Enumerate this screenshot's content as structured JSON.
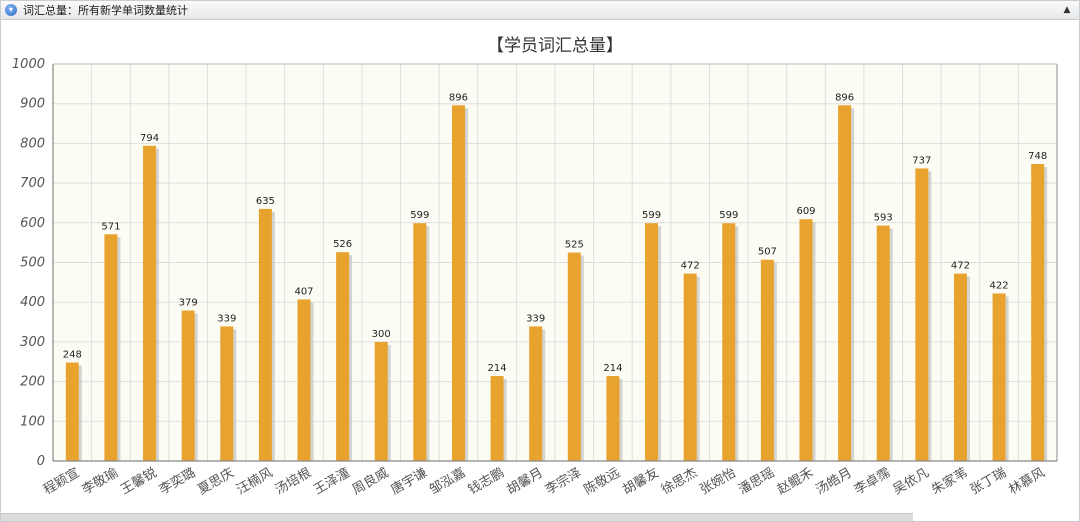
{
  "window": {
    "title": "词汇总量：所有新学单词数量统计",
    "collapse_icon": "chevron-up-icon"
  },
  "colors": {
    "bar": "#E8A32E",
    "bar_shadow": "#b8b8b8",
    "plot_background": "#fdfcf4",
    "grid": "#dedede"
  },
  "chart_data": {
    "type": "bar",
    "title": "【学员词汇总量】",
    "xlabel": "",
    "ylabel": "",
    "ylim": [
      0,
      1000
    ],
    "yticks": [
      0,
      100,
      200,
      300,
      400,
      500,
      600,
      700,
      800,
      900,
      1000
    ],
    "grid": true,
    "legend": "none",
    "categories": [
      "程颖宣",
      "李敬瑜",
      "王馨锐",
      "李奕璐",
      "夏思庆",
      "汪楠风",
      "汤培根",
      "王泽潼",
      "周良威",
      "唐宇谦",
      "邹泓嘉",
      "钱志鹏",
      "胡馨月",
      "李宗泽",
      "陈敬远",
      "胡馨友",
      "徐思杰",
      "张婉怡",
      "潘思瑶",
      "赵鲲禾",
      "汤皓月",
      "李卓霈",
      "吴依凡",
      "朱家苇",
      "张丁瑞",
      "林慕风"
    ],
    "values": [
      248,
      571,
      794,
      379,
      339,
      635,
      407,
      526,
      300,
      599,
      896,
      214,
      339,
      525,
      214,
      599,
      472,
      599,
      507,
      609,
      896,
      593,
      737,
      472,
      422,
      748
    ]
  }
}
